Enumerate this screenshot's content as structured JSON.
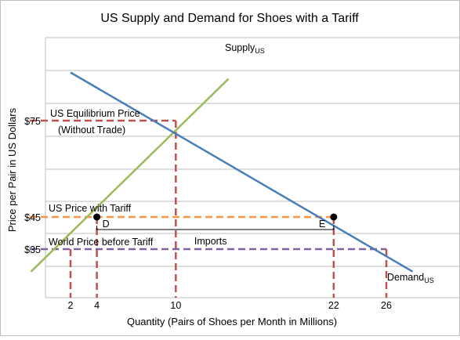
{
  "chart_data": {
    "type": "line",
    "title": "US Supply and Demand for Shoes with a Tariff",
    "xlabel": "Quantity (Pairs of Shoes per Month in Millions)",
    "ylabel": "Price per Pair in US Dollars",
    "xlim": [
      0,
      30
    ],
    "ylim": [
      20,
      95
    ],
    "grid": "horizontal",
    "x_ticks": [
      {
        "value": 2,
        "label": "2"
      },
      {
        "value": 4,
        "label": "4"
      },
      {
        "value": 10,
        "label": "10"
      },
      {
        "value": 22,
        "label": "22"
      },
      {
        "value": 26,
        "label": "26"
      }
    ],
    "y_ticks": [
      {
        "value": 35,
        "label": "$35"
      },
      {
        "value": 45,
        "label": "$45"
      },
      {
        "value": 75,
        "label": "$75"
      }
    ],
    "series": [
      {
        "name": "Supply",
        "name_sub": "US",
        "color": "#9bbb59",
        "points": [
          [
            -1,
            28
          ],
          [
            14,
            88
          ]
        ]
      },
      {
        "name": "Demand",
        "name_sub": "US",
        "color": "#4a7ebb",
        "points": [
          [
            2,
            90
          ],
          [
            28,
            28
          ]
        ]
      }
    ],
    "reference_lines": [
      {
        "label": "US Equilibrium Price",
        "label2": "(Without Trade)",
        "price": 75,
        "quantity": 10,
        "color": "#c0504d"
      },
      {
        "label": "US Price with Tariff",
        "price": 45,
        "quantity_low": 4,
        "quantity_high": 22,
        "color": "#f79646",
        "vertical_color": "#c0504d"
      },
      {
        "label": "World Price before Tariff",
        "price": 35,
        "quantity_low": 2,
        "quantity_high": 26,
        "color": "#8064a2",
        "vertical_color": "#c0504d"
      }
    ],
    "points": [
      {
        "label": "D",
        "x": 4,
        "y": 45
      },
      {
        "label": "E",
        "x": 22,
        "y": 45
      }
    ],
    "bracket_label": "Imports"
  }
}
